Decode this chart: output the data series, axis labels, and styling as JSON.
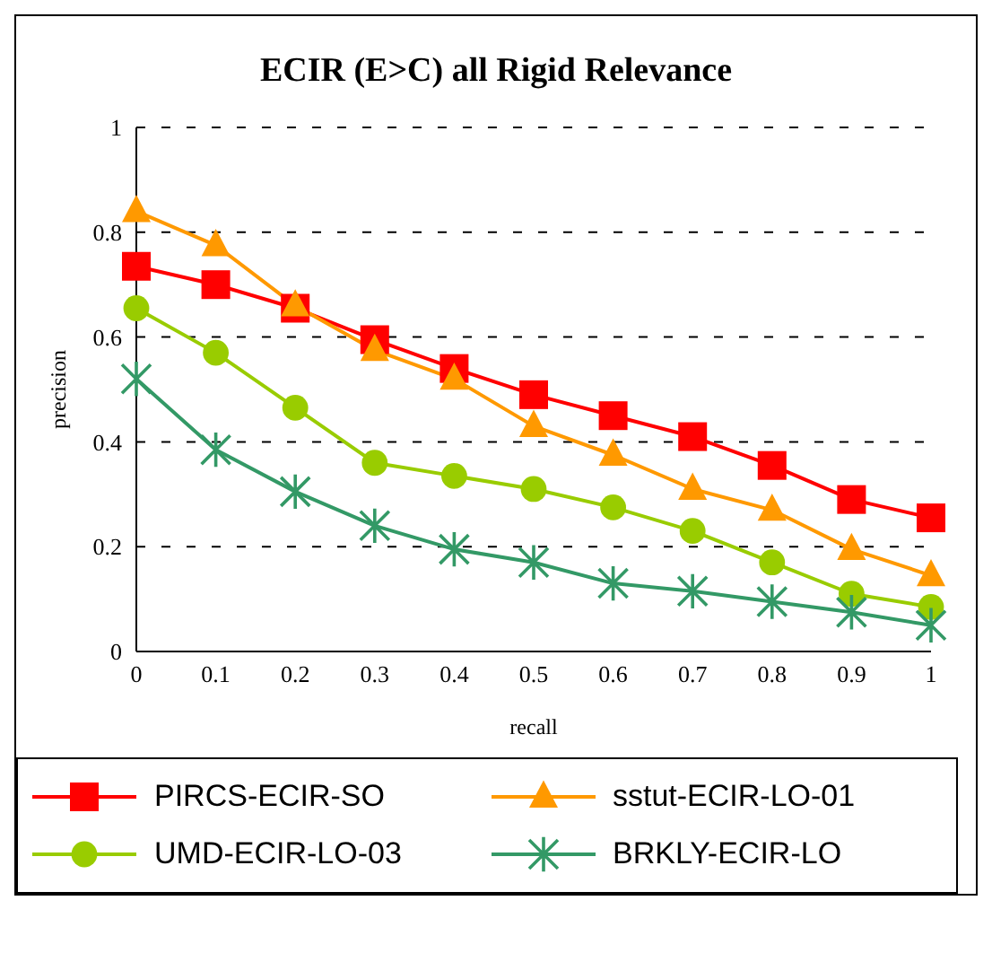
{
  "chart_data": {
    "type": "line",
    "title": "ECIR (E>C) all Rigid Relevance",
    "xlabel": "recall",
    "ylabel": "precision",
    "x": [
      0,
      0.1,
      0.2,
      0.3,
      0.4,
      0.5,
      0.6,
      0.7,
      0.8,
      0.9,
      1
    ],
    "series": [
      {
        "name": "PIRCS-ECIR-SO",
        "color": "#ff0000",
        "marker": "square",
        "values": [
          0.735,
          0.7,
          0.655,
          0.595,
          0.54,
          0.49,
          0.45,
          0.41,
          0.355,
          0.29,
          0.255
        ]
      },
      {
        "name": "sstut-ECIR-LO-01",
        "color": "#ff9900",
        "marker": "triangle",
        "values": [
          0.84,
          0.775,
          0.66,
          0.575,
          0.52,
          0.43,
          0.375,
          0.31,
          0.27,
          0.195,
          0.145
        ]
      },
      {
        "name": "UMD-ECIR-LO-03",
        "color": "#99cc00",
        "marker": "circle",
        "values": [
          0.655,
          0.57,
          0.465,
          0.36,
          0.335,
          0.31,
          0.275,
          0.23,
          0.17,
          0.11,
          0.085
        ]
      },
      {
        "name": "BRKLY-ECIR-LO",
        "color": "#339966",
        "marker": "cross",
        "values": [
          0.52,
          0.385,
          0.305,
          0.24,
          0.195,
          0.17,
          0.13,
          0.115,
          0.095,
          0.075,
          0.05
        ]
      }
    ],
    "xlim": [
      0,
      1
    ],
    "xticks": [
      0,
      0.1,
      0.2,
      0.3,
      0.4,
      0.5,
      0.6,
      0.7,
      0.8,
      0.9,
      1
    ],
    "ylim": [
      0,
      1
    ],
    "yticks": [
      0,
      0.2,
      0.4,
      0.6,
      0.8,
      1
    ],
    "grid": "y",
    "legend": "bottom",
    "line_style": "solid"
  }
}
